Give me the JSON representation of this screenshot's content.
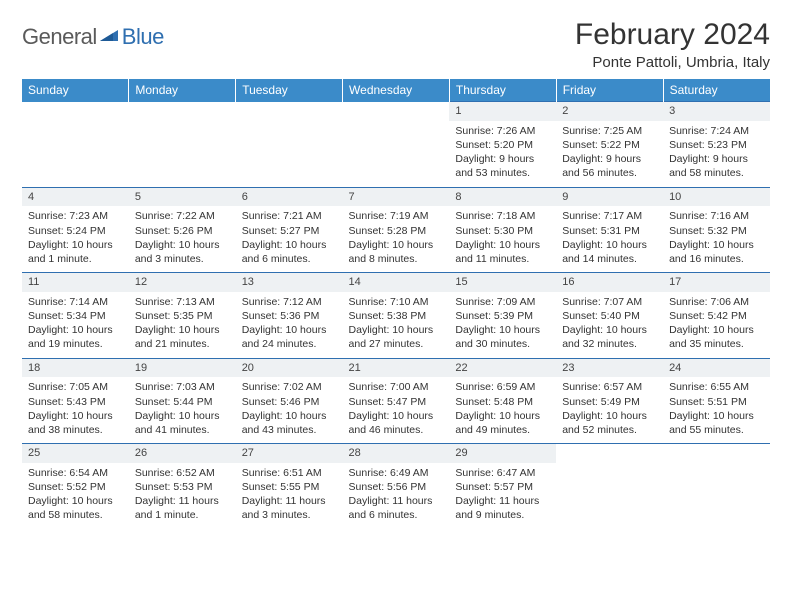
{
  "logo": {
    "text1": "General",
    "text2": "Blue"
  },
  "title": "February 2024",
  "location": "Ponte Pattoli, Umbria, Italy",
  "colors": {
    "header_bg": "#3b8bc9",
    "header_fg": "#ffffff",
    "daynum_bg": "#eef1f3",
    "border": "#2f6fb0",
    "logo_gray": "#5a5a5a",
    "logo_blue": "#2f6fb0"
  },
  "weekdays": [
    "Sunday",
    "Monday",
    "Tuesday",
    "Wednesday",
    "Thursday",
    "Friday",
    "Saturday"
  ],
  "weeks": [
    [
      null,
      null,
      null,
      null,
      {
        "n": "1",
        "sr": "Sunrise: 7:26 AM",
        "ss": "Sunset: 5:20 PM",
        "dl1": "Daylight: 9 hours",
        "dl2": "and 53 minutes."
      },
      {
        "n": "2",
        "sr": "Sunrise: 7:25 AM",
        "ss": "Sunset: 5:22 PM",
        "dl1": "Daylight: 9 hours",
        "dl2": "and 56 minutes."
      },
      {
        "n": "3",
        "sr": "Sunrise: 7:24 AM",
        "ss": "Sunset: 5:23 PM",
        "dl1": "Daylight: 9 hours",
        "dl2": "and 58 minutes."
      }
    ],
    [
      {
        "n": "4",
        "sr": "Sunrise: 7:23 AM",
        "ss": "Sunset: 5:24 PM",
        "dl1": "Daylight: 10 hours",
        "dl2": "and 1 minute."
      },
      {
        "n": "5",
        "sr": "Sunrise: 7:22 AM",
        "ss": "Sunset: 5:26 PM",
        "dl1": "Daylight: 10 hours",
        "dl2": "and 3 minutes."
      },
      {
        "n": "6",
        "sr": "Sunrise: 7:21 AM",
        "ss": "Sunset: 5:27 PM",
        "dl1": "Daylight: 10 hours",
        "dl2": "and 6 minutes."
      },
      {
        "n": "7",
        "sr": "Sunrise: 7:19 AM",
        "ss": "Sunset: 5:28 PM",
        "dl1": "Daylight: 10 hours",
        "dl2": "and 8 minutes."
      },
      {
        "n": "8",
        "sr": "Sunrise: 7:18 AM",
        "ss": "Sunset: 5:30 PM",
        "dl1": "Daylight: 10 hours",
        "dl2": "and 11 minutes."
      },
      {
        "n": "9",
        "sr": "Sunrise: 7:17 AM",
        "ss": "Sunset: 5:31 PM",
        "dl1": "Daylight: 10 hours",
        "dl2": "and 14 minutes."
      },
      {
        "n": "10",
        "sr": "Sunrise: 7:16 AM",
        "ss": "Sunset: 5:32 PM",
        "dl1": "Daylight: 10 hours",
        "dl2": "and 16 minutes."
      }
    ],
    [
      {
        "n": "11",
        "sr": "Sunrise: 7:14 AM",
        "ss": "Sunset: 5:34 PM",
        "dl1": "Daylight: 10 hours",
        "dl2": "and 19 minutes."
      },
      {
        "n": "12",
        "sr": "Sunrise: 7:13 AM",
        "ss": "Sunset: 5:35 PM",
        "dl1": "Daylight: 10 hours",
        "dl2": "and 21 minutes."
      },
      {
        "n": "13",
        "sr": "Sunrise: 7:12 AM",
        "ss": "Sunset: 5:36 PM",
        "dl1": "Daylight: 10 hours",
        "dl2": "and 24 minutes."
      },
      {
        "n": "14",
        "sr": "Sunrise: 7:10 AM",
        "ss": "Sunset: 5:38 PM",
        "dl1": "Daylight: 10 hours",
        "dl2": "and 27 minutes."
      },
      {
        "n": "15",
        "sr": "Sunrise: 7:09 AM",
        "ss": "Sunset: 5:39 PM",
        "dl1": "Daylight: 10 hours",
        "dl2": "and 30 minutes."
      },
      {
        "n": "16",
        "sr": "Sunrise: 7:07 AM",
        "ss": "Sunset: 5:40 PM",
        "dl1": "Daylight: 10 hours",
        "dl2": "and 32 minutes."
      },
      {
        "n": "17",
        "sr": "Sunrise: 7:06 AM",
        "ss": "Sunset: 5:42 PM",
        "dl1": "Daylight: 10 hours",
        "dl2": "and 35 minutes."
      }
    ],
    [
      {
        "n": "18",
        "sr": "Sunrise: 7:05 AM",
        "ss": "Sunset: 5:43 PM",
        "dl1": "Daylight: 10 hours",
        "dl2": "and 38 minutes."
      },
      {
        "n": "19",
        "sr": "Sunrise: 7:03 AM",
        "ss": "Sunset: 5:44 PM",
        "dl1": "Daylight: 10 hours",
        "dl2": "and 41 minutes."
      },
      {
        "n": "20",
        "sr": "Sunrise: 7:02 AM",
        "ss": "Sunset: 5:46 PM",
        "dl1": "Daylight: 10 hours",
        "dl2": "and 43 minutes."
      },
      {
        "n": "21",
        "sr": "Sunrise: 7:00 AM",
        "ss": "Sunset: 5:47 PM",
        "dl1": "Daylight: 10 hours",
        "dl2": "and 46 minutes."
      },
      {
        "n": "22",
        "sr": "Sunrise: 6:59 AM",
        "ss": "Sunset: 5:48 PM",
        "dl1": "Daylight: 10 hours",
        "dl2": "and 49 minutes."
      },
      {
        "n": "23",
        "sr": "Sunrise: 6:57 AM",
        "ss": "Sunset: 5:49 PM",
        "dl1": "Daylight: 10 hours",
        "dl2": "and 52 minutes."
      },
      {
        "n": "24",
        "sr": "Sunrise: 6:55 AM",
        "ss": "Sunset: 5:51 PM",
        "dl1": "Daylight: 10 hours",
        "dl2": "and 55 minutes."
      }
    ],
    [
      {
        "n": "25",
        "sr": "Sunrise: 6:54 AM",
        "ss": "Sunset: 5:52 PM",
        "dl1": "Daylight: 10 hours",
        "dl2": "and 58 minutes."
      },
      {
        "n": "26",
        "sr": "Sunrise: 6:52 AM",
        "ss": "Sunset: 5:53 PM",
        "dl1": "Daylight: 11 hours",
        "dl2": "and 1 minute."
      },
      {
        "n": "27",
        "sr": "Sunrise: 6:51 AM",
        "ss": "Sunset: 5:55 PM",
        "dl1": "Daylight: 11 hours",
        "dl2": "and 3 minutes."
      },
      {
        "n": "28",
        "sr": "Sunrise: 6:49 AM",
        "ss": "Sunset: 5:56 PM",
        "dl1": "Daylight: 11 hours",
        "dl2": "and 6 minutes."
      },
      {
        "n": "29",
        "sr": "Sunrise: 6:47 AM",
        "ss": "Sunset: 5:57 PM",
        "dl1": "Daylight: 11 hours",
        "dl2": "and 9 minutes."
      },
      null,
      null
    ]
  ]
}
